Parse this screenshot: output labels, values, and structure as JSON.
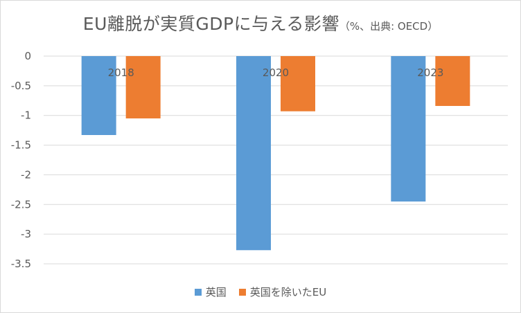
{
  "title": {
    "main": "EU離脱が実質GDPに与える影響",
    "note": "（%、出典: OECD）"
  },
  "chart_data": {
    "type": "bar",
    "title": "EU離脱が実質GDPに与える影響（%、出典: OECD）",
    "categories": [
      "2018",
      "2020",
      "2023"
    ],
    "series": [
      {
        "name": "英国",
        "color": "#5b9bd5",
        "values": [
          -1.33,
          -3.27,
          -2.45
        ]
      },
      {
        "name": "英国を除いたEU",
        "color": "#ed7d31",
        "values": [
          -1.05,
          -0.93,
          -0.84
        ]
      }
    ],
    "y_ticks": [
      "0",
      "-0.5",
      "-1",
      "-1.5",
      "-2",
      "-2.5",
      "-3",
      "-3.5"
    ],
    "ylim": [
      -3.5,
      0
    ],
    "xlabel": "",
    "ylabel": "",
    "grid": true,
    "legend_position": "bottom"
  }
}
